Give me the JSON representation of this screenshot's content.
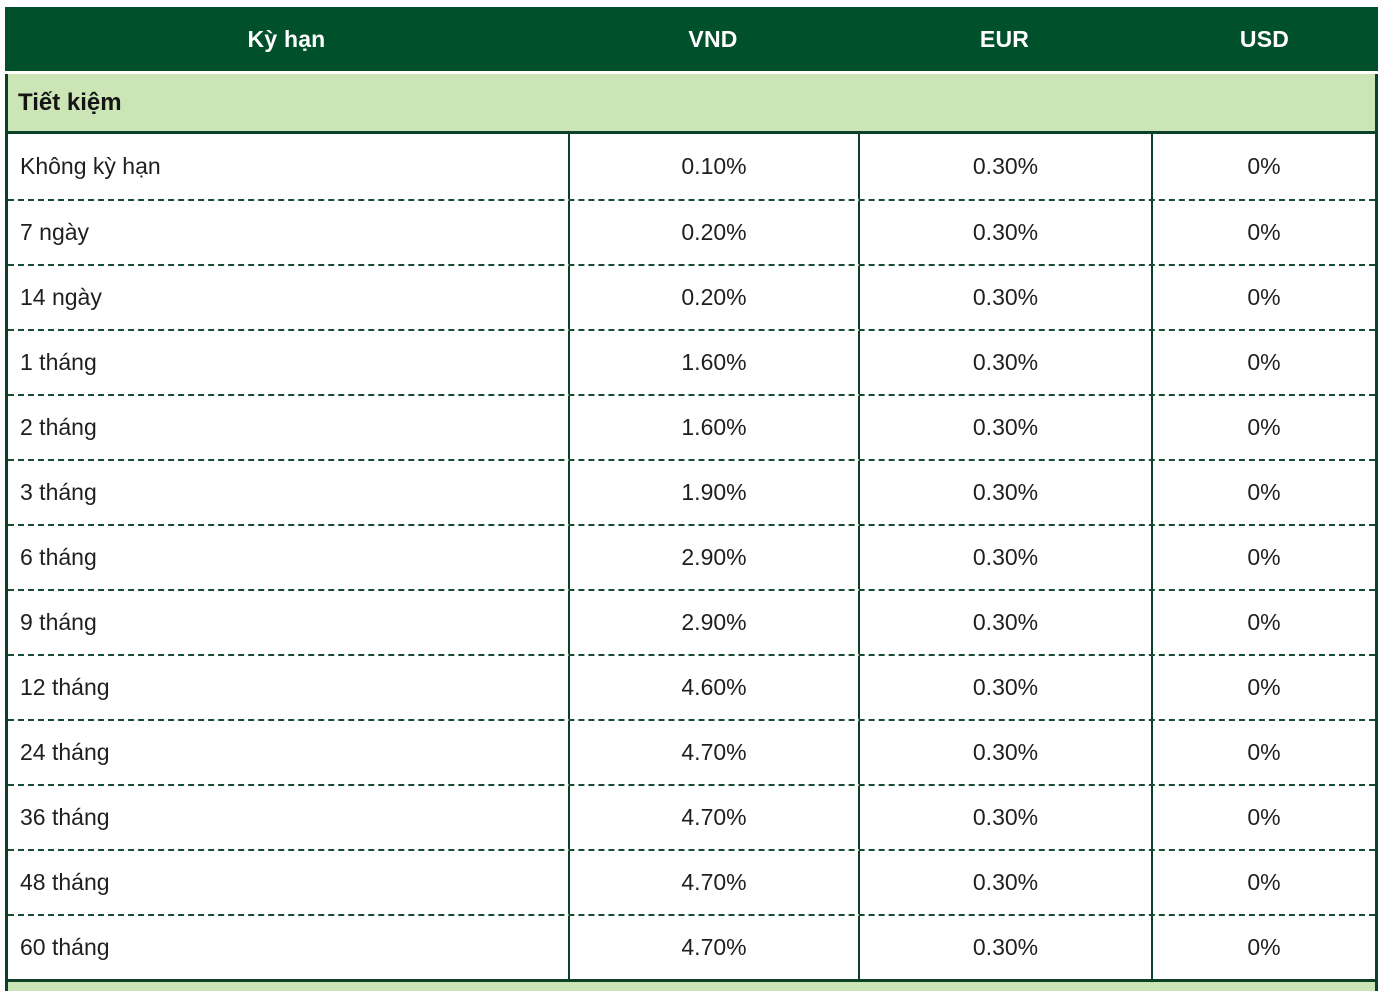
{
  "colors": {
    "header_bg": "#00512B",
    "section_bg": "#CBE5B6",
    "border": "#0D4127",
    "header_text": "#FFFFFF",
    "body_text": "#1F1F1F"
  },
  "table": {
    "columns": [
      {
        "label": "Kỳ hạn"
      },
      {
        "label": "VND"
      },
      {
        "label": "EUR"
      },
      {
        "label": "USD"
      }
    ],
    "section": {
      "title": "Tiết kiệm"
    },
    "rows": [
      {
        "term": "Không kỳ hạn",
        "vnd": "0.10%",
        "eur": "0.30%",
        "usd": "0%"
      },
      {
        "term": "7 ngày",
        "vnd": "0.20%",
        "eur": "0.30%",
        "usd": "0%"
      },
      {
        "term": "14 ngày",
        "vnd": "0.20%",
        "eur": "0.30%",
        "usd": "0%"
      },
      {
        "term": "1 tháng",
        "vnd": "1.60%",
        "eur": "0.30%",
        "usd": "0%"
      },
      {
        "term": "2 tháng",
        "vnd": "1.60%",
        "eur": "0.30%",
        "usd": "0%"
      },
      {
        "term": "3 tháng",
        "vnd": "1.90%",
        "eur": "0.30%",
        "usd": "0%"
      },
      {
        "term": "6 tháng",
        "vnd": "2.90%",
        "eur": "0.30%",
        "usd": "0%"
      },
      {
        "term": "9 tháng",
        "vnd": "2.90%",
        "eur": "0.30%",
        "usd": "0%"
      },
      {
        "term": "12 tháng",
        "vnd": "4.60%",
        "eur": "0.30%",
        "usd": "0%"
      },
      {
        "term": "24 tháng",
        "vnd": "4.70%",
        "eur": "0.30%",
        "usd": "0%"
      },
      {
        "term": "36 tháng",
        "vnd": "4.70%",
        "eur": "0.30%",
        "usd": "0%"
      },
      {
        "term": "48 tháng",
        "vnd": "4.70%",
        "eur": "0.30%",
        "usd": "0%"
      },
      {
        "term": "60 tháng",
        "vnd": "4.70%",
        "eur": "0.30%",
        "usd": "0%"
      }
    ]
  }
}
